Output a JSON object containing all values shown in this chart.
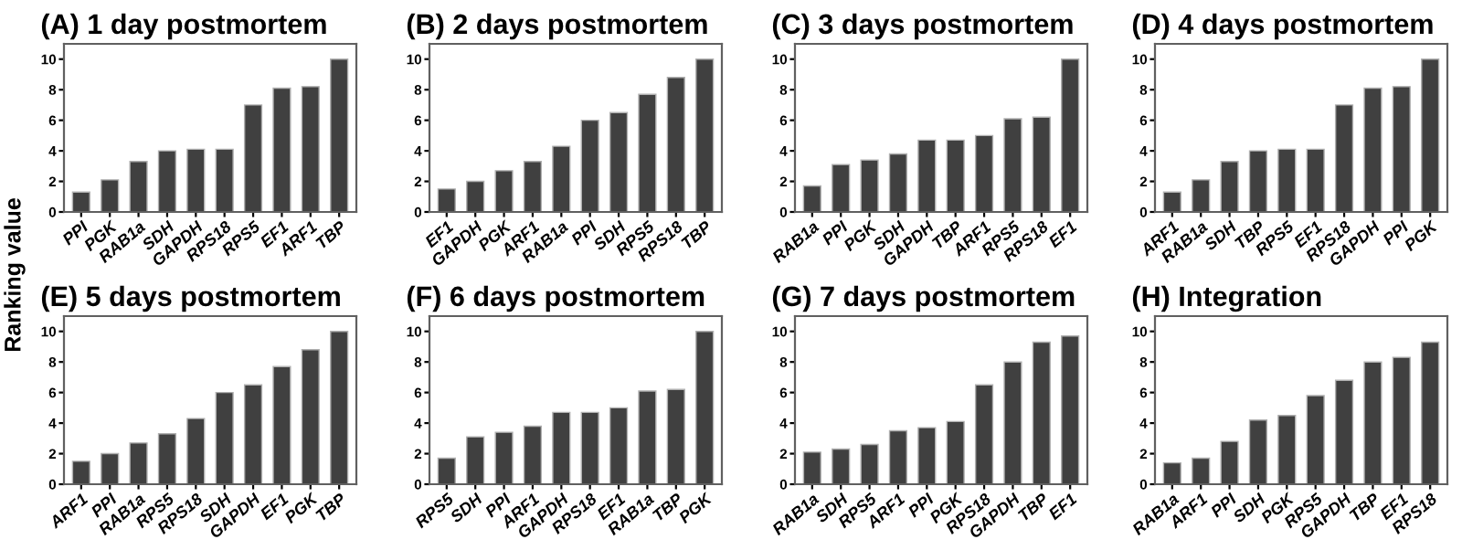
{
  "chart_data": [
    {
      "type": "bar",
      "title": "(A) 1 day postmortem",
      "ylabel": "Ranking value",
      "categories": [
        "PPI",
        "PGK",
        "RAB1a",
        "SDH",
        "GAPDH",
        "RPS18",
        "RPS5",
        "EF1",
        "ARF1",
        "TBP"
      ],
      "values": [
        1.3,
        2.1,
        3.3,
        4.0,
        4.1,
        4.1,
        7.0,
        8.1,
        8.2,
        10
      ],
      "color": "#404040",
      "ylim": [
        0,
        11
      ],
      "yticks": [
        0,
        2,
        4,
        6,
        8,
        10
      ],
      "grid": false,
      "legend": false
    },
    {
      "type": "bar",
      "title": "(B) 2 days postmortem",
      "categories": [
        "EF1",
        "GAPDH",
        "PGK",
        "ARF1",
        "RAB1a",
        "PPI",
        "SDH",
        "RPS5",
        "RPS18",
        "TBP"
      ],
      "values": [
        1.5,
        2.0,
        2.7,
        3.3,
        4.3,
        6.0,
        6.5,
        7.7,
        8.8,
        10
      ],
      "color": "#404040",
      "ylim": [
        0,
        11
      ],
      "yticks": [
        0,
        2,
        4,
        6,
        8,
        10
      ],
      "grid": false,
      "legend": false
    },
    {
      "type": "bar",
      "title": "(C) 3 days postmortem",
      "categories": [
        "RAB1a",
        "PPI",
        "PGK",
        "SDH",
        "GAPDH",
        "TBP",
        "ARF1",
        "RPS5",
        "RPS18",
        "EF1"
      ],
      "values": [
        1.7,
        3.1,
        3.4,
        3.8,
        4.7,
        4.7,
        5.0,
        6.1,
        6.2,
        10
      ],
      "color": "#404040",
      "ylim": [
        0,
        11
      ],
      "yticks": [
        0,
        2,
        4,
        6,
        8,
        10
      ],
      "grid": false,
      "legend": false
    },
    {
      "type": "bar",
      "title": "(D) 4 days postmortem",
      "categories": [
        "ARF1",
        "RAB1a",
        "SDH",
        "TBP",
        "RPS5",
        "EF1",
        "RPS18",
        "GAPDH",
        "PPI",
        "PGK"
      ],
      "values": [
        1.3,
        2.1,
        3.3,
        4.0,
        4.1,
        4.1,
        7.0,
        8.1,
        8.2,
        10
      ],
      "color": "#404040",
      "ylim": [
        0,
        11
      ],
      "yticks": [
        0,
        2,
        4,
        6,
        8,
        10
      ],
      "grid": false,
      "legend": false
    },
    {
      "type": "bar",
      "title": "(E) 5 days postmortem",
      "categories": [
        "ARF1",
        "PPI",
        "RAB1a",
        "RPS5",
        "RPS18",
        "SDH",
        "GAPDH",
        "EF1",
        "PGK",
        "TBP"
      ],
      "values": [
        1.5,
        2.0,
        2.7,
        3.3,
        4.3,
        6.0,
        6.5,
        7.7,
        8.8,
        10
      ],
      "color": "#404040",
      "ylim": [
        0,
        11
      ],
      "yticks": [
        0,
        2,
        4,
        6,
        8,
        10
      ],
      "grid": false,
      "legend": false
    },
    {
      "type": "bar",
      "title": "(F) 6 days postmortem",
      "categories": [
        "RPS5",
        "SDH",
        "PPI",
        "ARF1",
        "GAPDH",
        "RPS18",
        "EF1",
        "RAB1a",
        "TBP",
        "PGK"
      ],
      "values": [
        1.7,
        3.1,
        3.4,
        3.8,
        4.7,
        4.7,
        5.0,
        6.1,
        6.2,
        10
      ],
      "color": "#404040",
      "ylim": [
        0,
        11
      ],
      "yticks": [
        0,
        2,
        4,
        6,
        8,
        10
      ],
      "grid": false,
      "legend": false
    },
    {
      "type": "bar",
      "title": "(G) 7 days postmortem",
      "categories": [
        "RAB1a",
        "SDH",
        "RPS5",
        "ARF1",
        "PPI",
        "PGK",
        "RPS18",
        "GAPDH",
        "TBP",
        "EF1"
      ],
      "values": [
        2.1,
        2.3,
        2.6,
        3.5,
        3.7,
        4.1,
        6.5,
        8.0,
        9.3,
        9.7
      ],
      "color": "#404040",
      "ylim": [
        0,
        11
      ],
      "yticks": [
        0,
        2,
        4,
        6,
        8,
        10
      ],
      "grid": false,
      "legend": false
    },
    {
      "type": "bar",
      "title": "(H) Integration",
      "categories": [
        "RAB1a",
        "ARF1",
        "PPI",
        "SDH",
        "PGK",
        "RPS5",
        "GAPDH",
        "TBP",
        "EF1",
        "RPS18"
      ],
      "values": [
        1.4,
        1.7,
        2.8,
        4.2,
        4.5,
        5.8,
        6.8,
        8.0,
        8.3,
        9.3
      ],
      "color": "#404040",
      "ylim": [
        0,
        11
      ],
      "yticks": [
        0,
        2,
        4,
        6,
        8,
        10
      ],
      "grid": false,
      "legend": false
    }
  ]
}
